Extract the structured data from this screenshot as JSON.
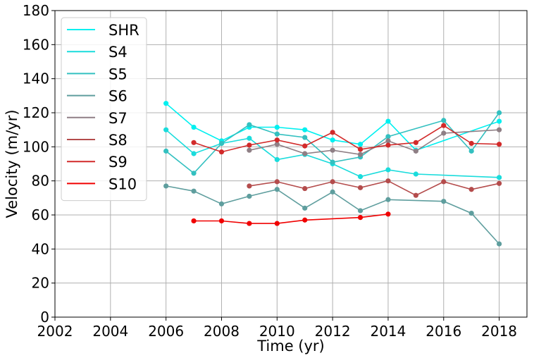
{
  "chart_data": {
    "type": "line",
    "xlabel": "Time (yr)",
    "ylabel": "Velocity (m/yr)",
    "xlim": [
      2002,
      2019
    ],
    "ylim": [
      0,
      180
    ],
    "xticks": [
      2002,
      2004,
      2006,
      2008,
      2010,
      2012,
      2014,
      2016,
      2018
    ],
    "yticks": [
      0,
      20,
      40,
      60,
      80,
      100,
      120,
      140,
      160,
      180
    ],
    "grid": true,
    "legend_position": "top-left",
    "series": [
      {
        "name": "SHR",
        "color": "#00f0f0",
        "x": [
          2006,
          2007,
          2008,
          2009,
          2010,
          2011,
          2012,
          2013,
          2014,
          2015,
          2018
        ],
        "y": [
          125.5,
          111.5,
          103.5,
          111.5,
          111.5,
          110.0,
          104.0,
          101.5,
          115.0,
          98.0,
          115.0
        ]
      },
      {
        "name": "S4",
        "color": "#1adcdc",
        "x": [
          2006,
          2007,
          2008,
          2009,
          2010,
          2011,
          2012,
          2013,
          2014,
          2015,
          2018
        ],
        "y": [
          110.0,
          96.0,
          102.0,
          105.0,
          92.5,
          95.5,
          90.0,
          82.5,
          86.5,
          84.0,
          82.0
        ]
      },
      {
        "name": "S5",
        "color": "#33c0c0",
        "x": [
          2006,
          2007,
          2008,
          2009,
          2010,
          2011,
          2012,
          2013,
          2014,
          2016,
          2017,
          2018
        ],
        "y": [
          97.5,
          84.5,
          102.0,
          113.0,
          107.5,
          105.5,
          91.0,
          94.0,
          106.0,
          115.5,
          97.5,
          120.0
        ]
      },
      {
        "name": "S6",
        "color": "#5f9e9e",
        "x": [
          2006,
          2007,
          2008,
          2009,
          2010,
          2011,
          2012,
          2013,
          2014,
          2016,
          2017,
          2018
        ],
        "y": [
          77.0,
          74.0,
          66.5,
          71.0,
          75.0,
          64.0,
          73.5,
          62.5,
          69.0,
          68.0,
          61.0,
          43.0
        ]
      },
      {
        "name": "S7",
        "color": "#8f7f85",
        "x": [
          2009,
          2010,
          2011,
          2012,
          2013,
          2014,
          2015,
          2016,
          2018
        ],
        "y": [
          98.0,
          101.5,
          96.0,
          98.0,
          95.5,
          103.5,
          97.5,
          108.0,
          110.0
        ]
      },
      {
        "name": "S8",
        "color": "#b44c4c",
        "x": [
          2009,
          2010,
          2011,
          2012,
          2013,
          2014,
          2015,
          2016,
          2017,
          2018
        ],
        "y": [
          77.0,
          79.5,
          75.5,
          79.5,
          76.0,
          80.0,
          71.5,
          79.5,
          75.0,
          78.5
        ]
      },
      {
        "name": "S9",
        "color": "#d22a2a",
        "x": [
          2007,
          2008,
          2009,
          2010,
          2011,
          2012,
          2013,
          2014,
          2015,
          2016,
          2017,
          2018
        ],
        "y": [
          102.5,
          97.0,
          101.0,
          104.0,
          100.5,
          108.5,
          98.5,
          101.0,
          102.5,
          112.5,
          102.0,
          101.5
        ]
      },
      {
        "name": "S10",
        "color": "#f00000",
        "x": [
          2007,
          2008,
          2009,
          2010,
          2011,
          2013,
          2014
        ],
        "y": [
          56.5,
          56.5,
          55.0,
          55.0,
          57.0,
          58.5,
          60.5
        ]
      }
    ]
  }
}
